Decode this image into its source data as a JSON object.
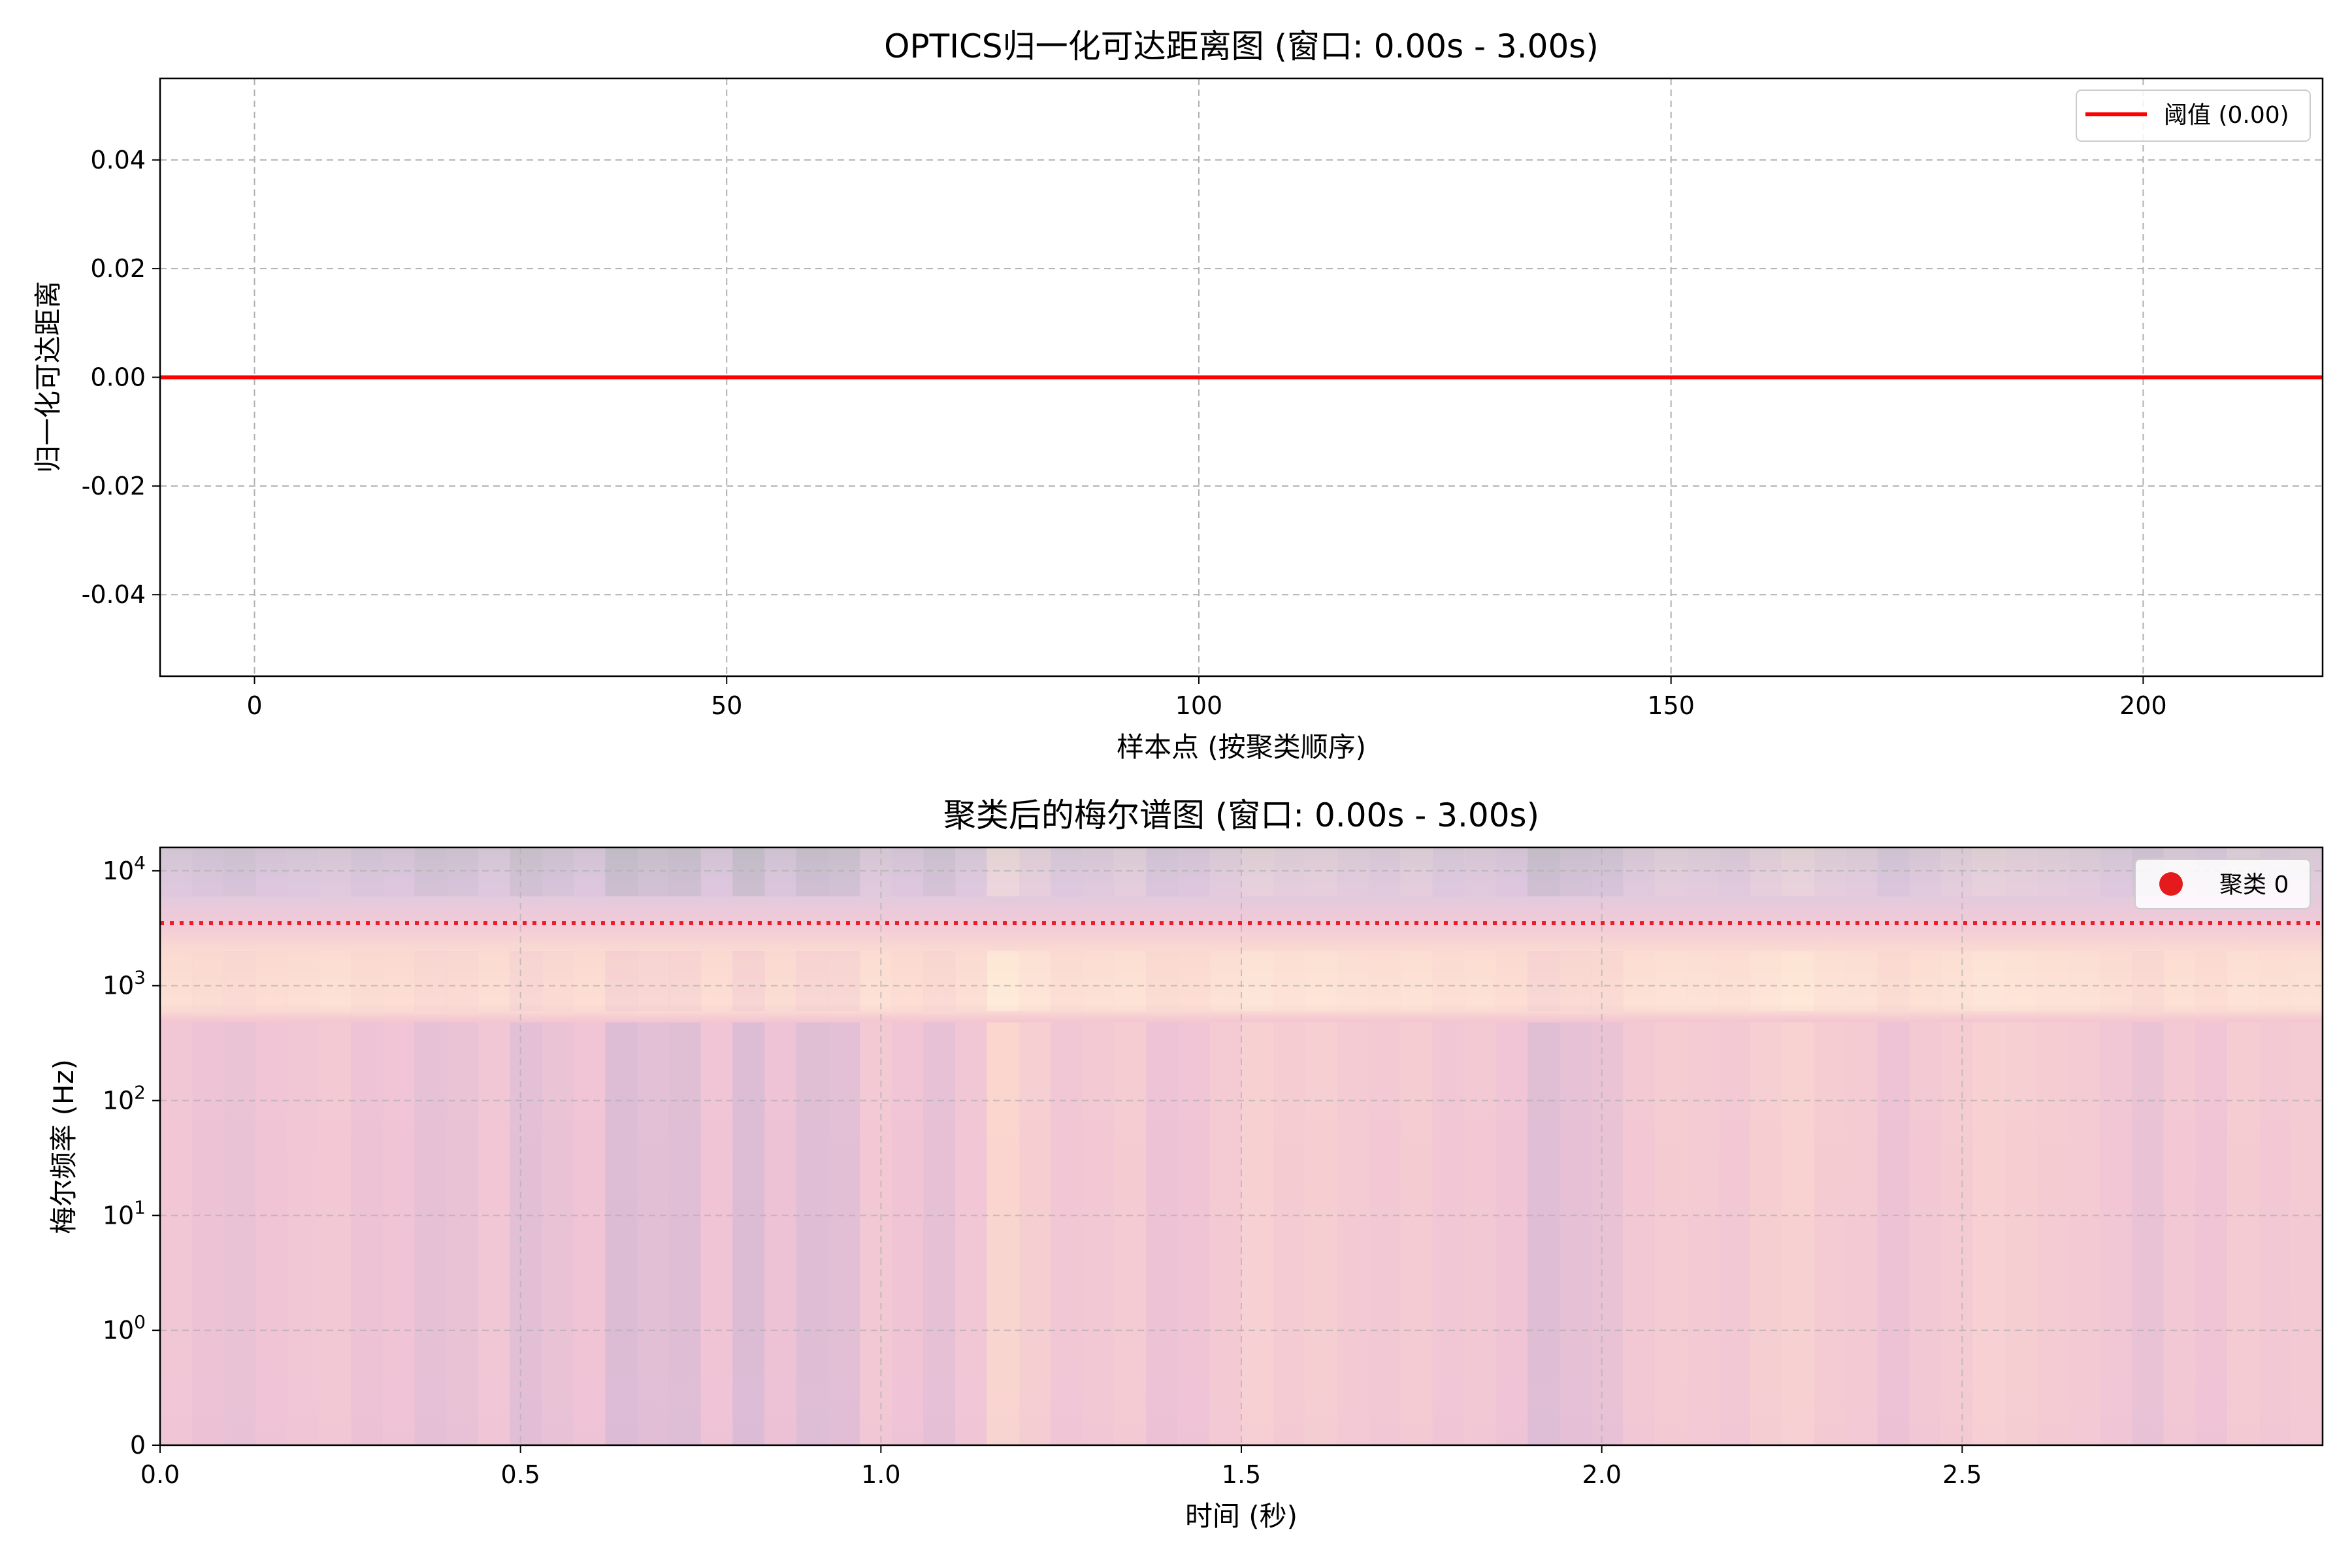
{
  "chart_data": [
    {
      "type": "line",
      "title": "OPTICS归一化可达距离图 (窗口: 0.00s - 3.00s)",
      "xlabel": "样本点 (按聚类顺序)",
      "ylabel": "归一化可达距离",
      "xlim": [
        -10,
        219
      ],
      "ylim": [
        -0.055,
        0.055
      ],
      "xticks": [
        0,
        50,
        100,
        150,
        200
      ],
      "xtick_labels": [
        "0",
        "50",
        "100",
        "150",
        "200"
      ],
      "yticks": [
        0.04,
        0.02,
        0.0,
        -0.02,
        -0.04
      ],
      "ytick_labels": [
        "0.04",
        "0.02",
        "0.00",
        "-0.02",
        "-0.04"
      ],
      "grid": true,
      "legend_position": "top-right",
      "series": [
        {
          "name": "阈值 (0.00)",
          "x": [
            -10,
            219
          ],
          "y": [
            0.0,
            0.0
          ],
          "color": "#ff0000",
          "style": "solid"
        }
      ]
    },
    {
      "type": "heatmap",
      "title": "聚类后的梅尔谱图 (窗口: 0.00s - 3.00s)",
      "xlabel": "时间 (秒)",
      "ylabel": "梅尔频率 (Hz)",
      "xlim": [
        0.0,
        3.0
      ],
      "yscale": "symlog",
      "ylim": [
        0,
        16000
      ],
      "xticks": [
        0.0,
        0.5,
        1.0,
        1.5,
        2.0,
        2.5
      ],
      "xtick_labels": [
        "0.0",
        "0.5",
        "1.0",
        "1.5",
        "2.0",
        "2.5"
      ],
      "yticks": [
        0,
        1,
        10,
        100,
        1000,
        10000
      ],
      "ytick_labels": [
        {
          "base": "0",
          "exp": ""
        },
        {
          "base": "10",
          "exp": "0"
        },
        {
          "base": "10",
          "exp": "1"
        },
        {
          "base": "10",
          "exp": "2"
        },
        {
          "base": "10",
          "exp": "3"
        },
        {
          "base": "10",
          "exp": "4"
        }
      ],
      "grid": true,
      "legend_position": "top-right",
      "threshold_line": {
        "y": 3500,
        "color": "#ee1c24",
        "style": "dotted"
      },
      "series": [
        {
          "name": "聚类 0",
          "marker": "circle",
          "color": "#e41a1c"
        }
      ],
      "column_shading": [
        0.55,
        0.45,
        0.4,
        0.5,
        0.55,
        0.6,
        0.45,
        0.5,
        0.35,
        0.4,
        0.55,
        0.3,
        0.4,
        0.5,
        0.2,
        0.3,
        0.25,
        0.5,
        0.2,
        0.45,
        0.25,
        0.3,
        0.6,
        0.5,
        0.35,
        0.55,
        0.95,
        0.75,
        0.55,
        0.6,
        0.7,
        0.45,
        0.5,
        0.65,
        0.8,
        0.7,
        0.75,
        0.65,
        0.6,
        0.7,
        0.55,
        0.6,
        0.5,
        0.25,
        0.35,
        0.4,
        0.6,
        0.7,
        0.65,
        0.6,
        0.75,
        0.85,
        0.7,
        0.65,
        0.45,
        0.6,
        0.7,
        0.8,
        0.75,
        0.7,
        0.65,
        0.55,
        0.4,
        0.6,
        0.5,
        0.7,
        0.6,
        0.65
      ]
    }
  ]
}
